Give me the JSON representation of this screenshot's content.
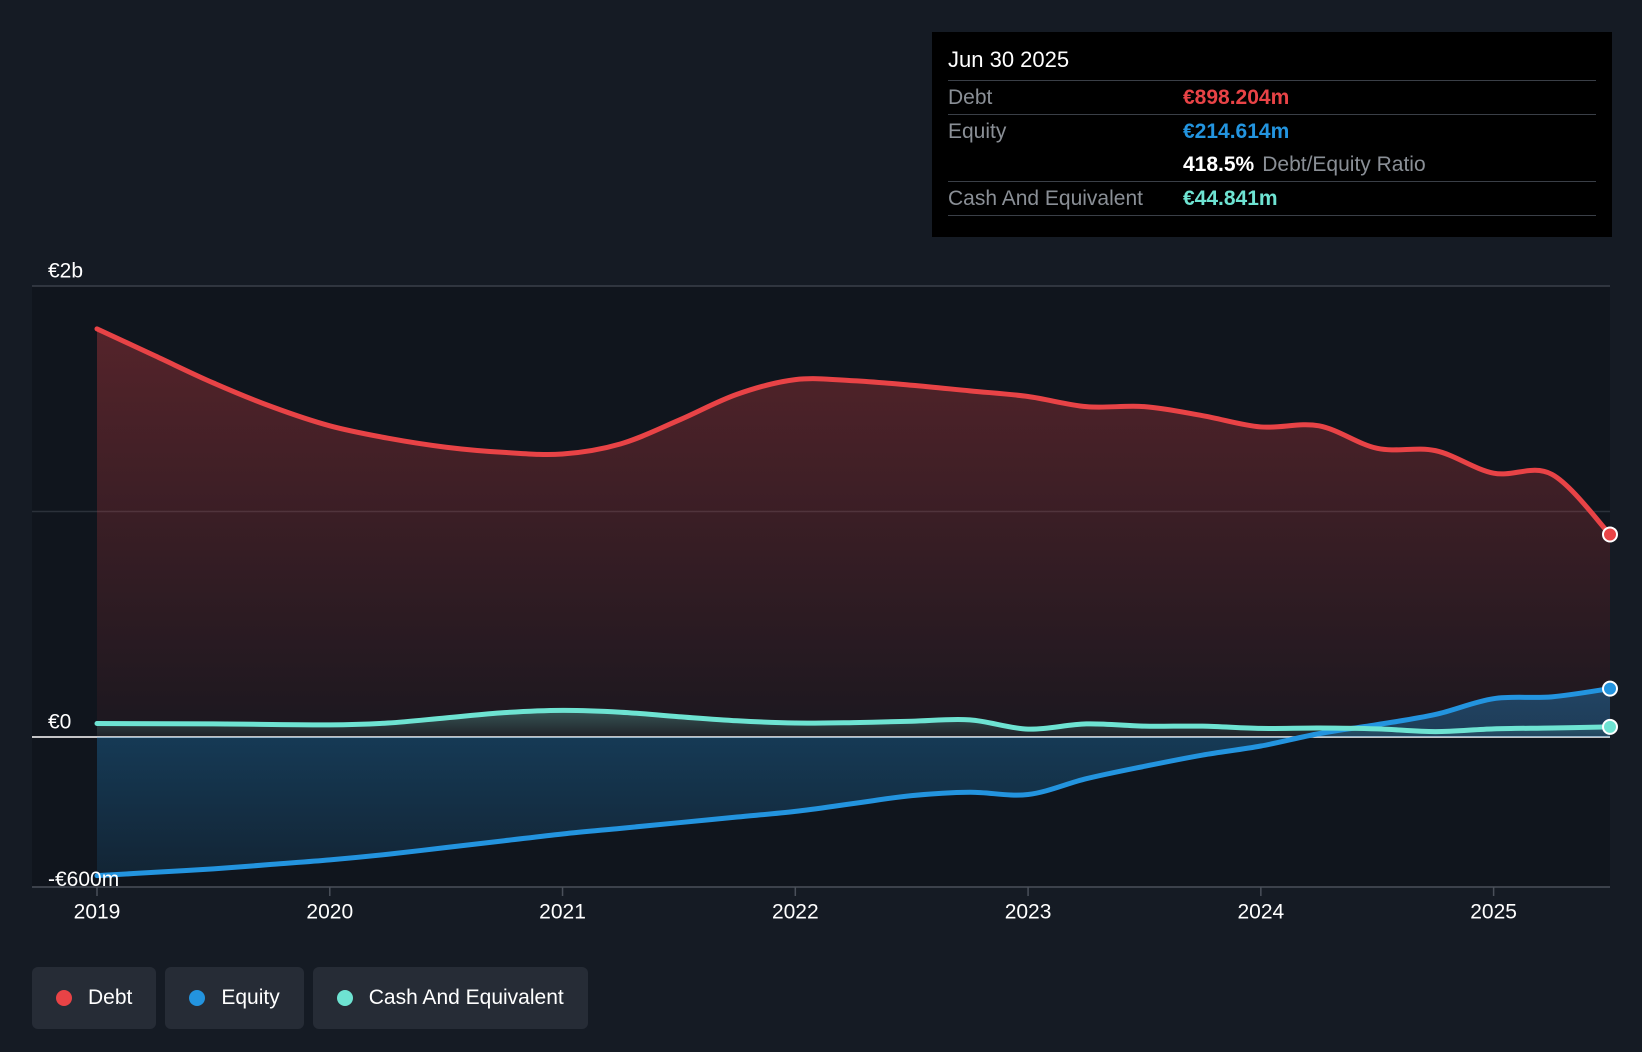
{
  "colors": {
    "debt": "#e84346",
    "equity": "#2394df",
    "cash": "#6ee3d2",
    "background": "#151b24",
    "plot_background": "#10151d",
    "tooltip_label": "#8a8f96"
  },
  "tooltip": {
    "date": "Jun 30 2025",
    "debt_label": "Debt",
    "debt_value": "€898.204m",
    "equity_label": "Equity",
    "equity_value": "€214.614m",
    "ratio_value": "418.5%",
    "ratio_label": "Debt/Equity Ratio",
    "cash_label": "Cash And Equivalent",
    "cash_value": "€44.841m"
  },
  "legend": [
    {
      "label": "Debt",
      "color_key": "debt"
    },
    {
      "label": "Equity",
      "color_key": "equity"
    },
    {
      "label": "Cash And Equivalent",
      "color_key": "cash"
    }
  ],
  "chart_data": {
    "type": "area",
    "title": "",
    "xlabel": "",
    "ylabel": "",
    "y_tick_labels": [
      {
        "value": 2000,
        "label": "€2b"
      },
      {
        "value": 0,
        "label": "€0"
      },
      {
        "value": -600,
        "label": "-€600m"
      }
    ],
    "ylim": [
      -600,
      2000
    ],
    "x_ticks": [
      2019,
      2020,
      2021,
      2022,
      2023,
      2024,
      2025
    ],
    "xlim": [
      2019,
      2025.5
    ],
    "series": [
      {
        "name": "Debt",
        "color_key": "debt",
        "points": [
          [
            2019.0,
            1810
          ],
          [
            2019.25,
            1690
          ],
          [
            2019.5,
            1570
          ],
          [
            2019.75,
            1465
          ],
          [
            2020.0,
            1380
          ],
          [
            2020.25,
            1325
          ],
          [
            2020.5,
            1285
          ],
          [
            2020.75,
            1262
          ],
          [
            2021.0,
            1255
          ],
          [
            2021.25,
            1300
          ],
          [
            2021.5,
            1405
          ],
          [
            2021.75,
            1520
          ],
          [
            2022.0,
            1585
          ],
          [
            2022.25,
            1580
          ],
          [
            2022.5,
            1560
          ],
          [
            2022.75,
            1535
          ],
          [
            2023.0,
            1510
          ],
          [
            2023.25,
            1465
          ],
          [
            2023.5,
            1465
          ],
          [
            2023.75,
            1425
          ],
          [
            2024.0,
            1375
          ],
          [
            2024.25,
            1380
          ],
          [
            2024.5,
            1280
          ],
          [
            2024.75,
            1270
          ],
          [
            2025.0,
            1170
          ],
          [
            2025.25,
            1165
          ],
          [
            2025.5,
            898.204
          ]
        ]
      },
      {
        "name": "Equity",
        "color_key": "equity",
        "points": [
          [
            2019.0,
            -615
          ],
          [
            2019.25,
            -600
          ],
          [
            2019.5,
            -585
          ],
          [
            2019.75,
            -565
          ],
          [
            2020.0,
            -545
          ],
          [
            2020.25,
            -520
          ],
          [
            2020.5,
            -490
          ],
          [
            2020.75,
            -460
          ],
          [
            2021.0,
            -430
          ],
          [
            2021.25,
            -405
          ],
          [
            2021.5,
            -380
          ],
          [
            2021.75,
            -355
          ],
          [
            2022.0,
            -330
          ],
          [
            2022.25,
            -295
          ],
          [
            2022.5,
            -260
          ],
          [
            2022.75,
            -245
          ],
          [
            2023.0,
            -255
          ],
          [
            2023.25,
            -185
          ],
          [
            2023.5,
            -130
          ],
          [
            2023.75,
            -80
          ],
          [
            2024.0,
            -40
          ],
          [
            2024.25,
            15
          ],
          [
            2024.5,
            55
          ],
          [
            2024.75,
            100
          ],
          [
            2025.0,
            170
          ],
          [
            2025.25,
            178
          ],
          [
            2025.5,
            214.614
          ]
        ]
      },
      {
        "name": "Cash And Equivalent",
        "color_key": "cash",
        "points": [
          [
            2019.0,
            60
          ],
          [
            2019.5,
            58
          ],
          [
            2020.0,
            54
          ],
          [
            2020.25,
            62
          ],
          [
            2020.5,
            85
          ],
          [
            2020.75,
            108
          ],
          [
            2021.0,
            118
          ],
          [
            2021.25,
            110
          ],
          [
            2021.5,
            90
          ],
          [
            2021.75,
            72
          ],
          [
            2022.0,
            62
          ],
          [
            2022.25,
            64
          ],
          [
            2022.5,
            70
          ],
          [
            2022.75,
            76
          ],
          [
            2023.0,
            35
          ],
          [
            2023.25,
            58
          ],
          [
            2023.5,
            48
          ],
          [
            2023.75,
            48
          ],
          [
            2024.0,
            38
          ],
          [
            2024.25,
            40
          ],
          [
            2024.5,
            36
          ],
          [
            2024.75,
            24
          ],
          [
            2025.0,
            36
          ],
          [
            2025.25,
            40
          ],
          [
            2025.5,
            44.841
          ]
        ]
      }
    ]
  }
}
